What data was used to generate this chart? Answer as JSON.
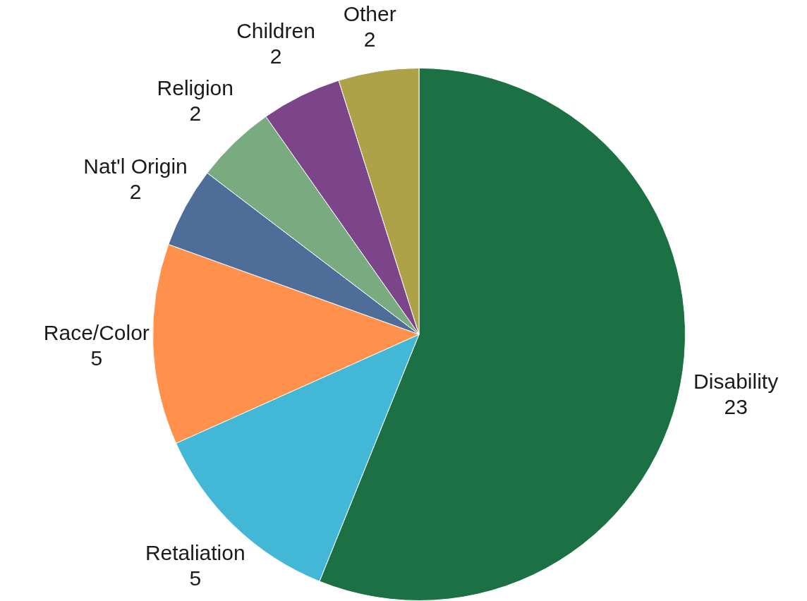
{
  "chart_data": {
    "type": "pie",
    "categories": [
      "Disability",
      "Retaliation",
      "Race/Color",
      "Nat'l Origin",
      "Religion",
      "Children",
      "Other"
    ],
    "values": [
      23,
      5,
      5,
      2,
      2,
      2,
      2
    ],
    "colors": [
      "#1b7144",
      "#42b8d6",
      "#ff914d",
      "#4e6e99",
      "#7aaa80",
      "#7c4589",
      "#ada247"
    ],
    "data_labels": true,
    "legend": false
  }
}
